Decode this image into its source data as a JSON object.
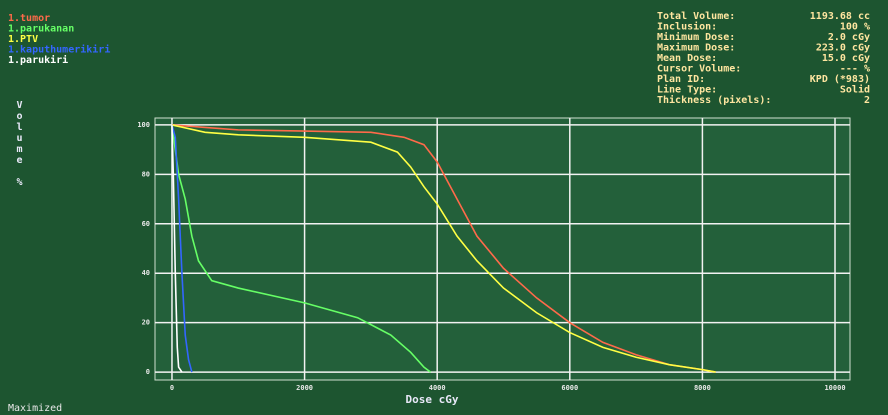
{
  "chart_data": {
    "type": "line",
    "x_label": "Dose cGy",
    "y_label": "Volume %",
    "xlim": [
      -256,
      10226
    ],
    "xticks": [
      0,
      2000,
      4000,
      6000,
      8000,
      10000
    ],
    "ylim": [
      -3.2,
      102.8
    ],
    "yticks": [
      0,
      20,
      40,
      60,
      80,
      100
    ],
    "grid": true,
    "legend": "upper left",
    "series": [
      {
        "name": "1.tumor",
        "color": "#ff6a4a",
        "x": [
          0,
          500,
          1000,
          2000,
          3000,
          3500,
          3800,
          4000,
          4300,
          4600,
          5000,
          5500,
          6000,
          6500,
          7000,
          7500,
          8000,
          8200
        ],
        "values": [
          100,
          99,
          98,
          97.5,
          97,
          95,
          92,
          85,
          70,
          55,
          42,
          30,
          20,
          12,
          7,
          3,
          1,
          0
        ]
      },
      {
        "name": "1.parukanan",
        "color": "#66ff66",
        "x": [
          0,
          50,
          100,
          200,
          300,
          400,
          600,
          1000,
          2000,
          2800,
          3300,
          3600,
          3800,
          3900
        ],
        "values": [
          100,
          90,
          80,
          70,
          55,
          45,
          37,
          34,
          28,
          22,
          15,
          8,
          2,
          0
        ]
      },
      {
        "name": "1.PTV",
        "color": "#ffff44",
        "x": [
          0,
          500,
          1000,
          2000,
          3000,
          3400,
          3600,
          3800,
          4000,
          4300,
          4600,
          5000,
          5500,
          6000,
          6500,
          7000,
          7500,
          8000,
          8200
        ],
        "values": [
          100,
          97,
          96,
          95,
          93,
          89,
          83,
          75,
          68,
          55,
          45,
          34,
          24,
          16,
          10,
          6,
          3,
          1,
          0
        ]
      },
      {
        "name": "1.kaputhumerikiri",
        "color": "#3366ff",
        "x": [
          0,
          50,
          100,
          150,
          200,
          250,
          300
        ],
        "values": [
          100,
          95,
          70,
          40,
          15,
          5,
          0
        ]
      },
      {
        "name": "1.parukiri",
        "color": "#ffffff",
        "x": [
          0,
          20,
          50,
          80,
          100,
          150
        ],
        "values": [
          100,
          80,
          40,
          10,
          2,
          0
        ]
      }
    ]
  },
  "info_panel": [
    {
      "label": "Total Volume:",
      "value": "1193.68 cc"
    },
    {
      "label": "Inclusion:",
      "value": "100 %"
    },
    {
      "label": "Minimum Dose:",
      "value": "2.0 cGy"
    },
    {
      "label": "Maximum Dose:",
      "value": "223.0 cGy"
    },
    {
      "label": "Mean Dose:",
      "value": "15.0 cGy"
    },
    {
      "label": "Cursor Volume:",
      "value": "--- %"
    },
    {
      "label": "Plan ID:",
      "value": "KPD (*983)"
    },
    {
      "label": "Line Type:",
      "value": "Solid"
    },
    {
      "label": "Thickness (pixels):",
      "value": "2"
    }
  ],
  "status": "Maximized"
}
